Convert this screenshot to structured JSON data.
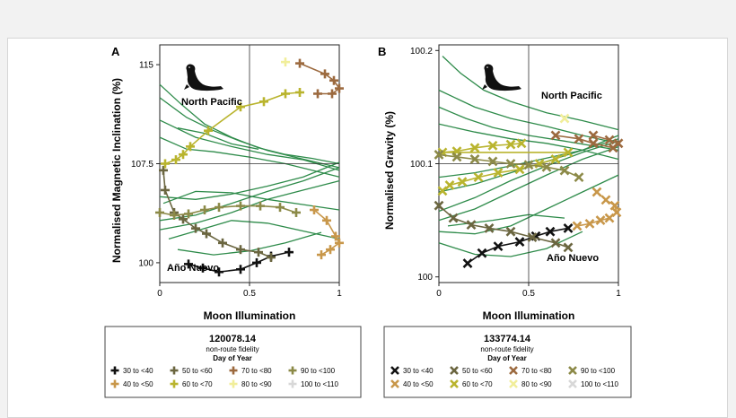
{
  "colors": {
    "track": "#2e8b4a",
    "bins": {
      "30 to <40": "#111111",
      "40 to <50": "#c8974a",
      "50 to <60": "#6b6640",
      "60 to <70": "#b9b42e",
      "70 to <80": "#9c6a3f",
      "80 to <90": "#f1ee9a",
      "90 to <100": "#8c8a48",
      "100 to <110": "#d8d8d8"
    }
  },
  "icons": {
    "seal": "seal-silhouette-icon"
  },
  "chart_data": [
    {
      "type": "scatter",
      "panel": "A",
      "xlabel": "Moon Illumination",
      "ylabel": "Normalised Magnetic Inclination (%)",
      "xlim": [
        0,
        1
      ],
      "ylim": [
        98.5,
        116.5
      ],
      "xticks": [
        0,
        0.5,
        1
      ],
      "xtick_labels": [
        "0",
        "0.5",
        "1"
      ],
      "yticks": [
        100,
        107.5,
        115
      ],
      "ytick_labels": [
        "100",
        "107.5",
        "115"
      ],
      "ref_lines": {
        "x": 0.5,
        "y": 107.5
      },
      "annotations": [
        "North Pacific",
        "Año Nuevo"
      ],
      "marker": "plus",
      "series": [
        {
          "bin": "30 to <40",
          "points": [
            [
              0.16,
              99.9
            ],
            [
              0.24,
              99.6
            ],
            [
              0.33,
              99.3
            ],
            [
              0.45,
              99.5
            ],
            [
              0.54,
              100.0
            ],
            [
              0.62,
              100.5
            ],
            [
              0.72,
              100.8
            ]
          ]
        },
        {
          "bin": "40 to <50",
          "points": [
            [
              0.86,
              104.0
            ],
            [
              0.93,
              103.2
            ],
            [
              0.98,
              102.0
            ],
            [
              1.0,
              101.5
            ],
            [
              0.95,
              101.0
            ],
            [
              0.9,
              100.6
            ]
          ]
        },
        {
          "bin": "50 to <60",
          "points": [
            [
              0.02,
              107.0
            ],
            [
              0.03,
              105.5
            ],
            [
              0.08,
              103.8
            ],
            [
              0.13,
              103.3
            ],
            [
              0.2,
              102.6
            ],
            [
              0.26,
              102.2
            ],
            [
              0.35,
              101.5
            ],
            [
              0.45,
              101.0
            ],
            [
              0.55,
              100.8
            ],
            [
              0.62,
              100.4
            ]
          ]
        },
        {
          "bin": "60 to <70",
          "points": [
            [
              0.03,
              107.5
            ],
            [
              0.09,
              107.8
            ],
            [
              0.13,
              108.2
            ],
            [
              0.17,
              108.8
            ],
            [
              0.27,
              110.0
            ],
            [
              0.45,
              111.8
            ],
            [
              0.58,
              112.2
            ],
            [
              0.7,
              112.8
            ],
            [
              0.78,
              112.9
            ]
          ]
        },
        {
          "bin": "70 to <80",
          "points": [
            [
              0.78,
              115.1
            ],
            [
              0.92,
              114.3
            ],
            [
              0.97,
              113.8
            ],
            [
              1.0,
              113.2
            ],
            [
              0.96,
              112.8
            ],
            [
              0.88,
              112.8
            ]
          ]
        },
        {
          "bin": "80 to <90",
          "points": [
            [
              0.7,
              115.2
            ]
          ]
        },
        {
          "bin": "90 to <100",
          "points": [
            [
              0.0,
              103.8
            ],
            [
              0.08,
              103.6
            ],
            [
              0.16,
              103.7
            ],
            [
              0.25,
              104.0
            ],
            [
              0.33,
              104.2
            ],
            [
              0.45,
              104.3
            ],
            [
              0.56,
              104.3
            ],
            [
              0.67,
              104.2
            ],
            [
              0.76,
              103.8
            ]
          ]
        },
        {
          "bin": "100 to <110",
          "points": []
        }
      ],
      "tracks": [
        [
          [
            0,
            113.5
          ],
          [
            0.12,
            112.0
          ],
          [
            0.25,
            110.5
          ],
          [
            0.4,
            109.5
          ],
          [
            0.55,
            108.7
          ],
          [
            0.7,
            108.2
          ],
          [
            0.85,
            107.9
          ],
          [
            1.0,
            107.5
          ]
        ],
        [
          [
            0,
            112.5
          ],
          [
            0.15,
            111.0
          ],
          [
            0.3,
            110.0
          ],
          [
            0.45,
            109.2
          ],
          [
            0.6,
            108.5
          ],
          [
            0.75,
            108.0
          ],
          [
            1.0,
            107.2
          ]
        ],
        [
          [
            0,
            110.8
          ],
          [
            0.2,
            109.5
          ],
          [
            0.4,
            108.8
          ],
          [
            0.6,
            108.2
          ],
          [
            0.8,
            107.8
          ],
          [
            1.0,
            107.0
          ]
        ],
        [
          [
            0,
            109.5
          ],
          [
            0.15,
            108.6
          ],
          [
            0.3,
            108.4
          ],
          [
            0.5,
            108.0
          ],
          [
            0.7,
            107.5
          ],
          [
            1.0,
            106.5
          ]
        ],
        [
          [
            0,
            105.0
          ],
          [
            0.2,
            104.8
          ],
          [
            0.4,
            105.2
          ],
          [
            0.6,
            105.8
          ],
          [
            0.8,
            106.5
          ],
          [
            1.0,
            107.6
          ]
        ],
        [
          [
            0,
            103.2
          ],
          [
            0.2,
            103.6
          ],
          [
            0.4,
            104.5
          ],
          [
            0.6,
            105.4
          ],
          [
            0.8,
            106.2
          ],
          [
            1.0,
            107.2
          ]
        ],
        [
          [
            0,
            102.5
          ],
          [
            0.2,
            103.0
          ],
          [
            0.4,
            103.8
          ],
          [
            0.6,
            104.8
          ],
          [
            0.8,
            105.5
          ],
          [
            1.0,
            106.2
          ]
        ],
        [
          [
            0.02,
            104.5
          ],
          [
            0.2,
            105.4
          ],
          [
            0.4,
            105.3
          ],
          [
            0.6,
            104.8
          ],
          [
            0.8,
            104.4
          ],
          [
            1.0,
            104.0
          ]
        ],
        [
          [
            0.05,
            101.8
          ],
          [
            0.2,
            102.4
          ],
          [
            0.4,
            103.2
          ],
          [
            0.6,
            103.0
          ],
          [
            0.8,
            102.4
          ],
          [
            1.0,
            101.8
          ]
        ],
        [
          [
            0.1,
            101.0
          ],
          [
            0.3,
            100.6
          ],
          [
            0.5,
            100.9
          ],
          [
            0.7,
            101.5
          ],
          [
            0.9,
            102.3
          ]
        ],
        [
          [
            0.1,
            110.2
          ],
          [
            0.25,
            109.8
          ],
          [
            0.4,
            109.0
          ],
          [
            0.55,
            108.6
          ]
        ]
      ]
    },
    {
      "type": "scatter",
      "panel": "B",
      "xlabel": "Moon Illumination",
      "ylabel": "Normalised Gravity (%)",
      "xlim": [
        0,
        1
      ],
      "ylim": [
        99.995,
        100.205
      ],
      "xticks": [
        0,
        0.5,
        1
      ],
      "xtick_labels": [
        "0",
        "0.5",
        "1"
      ],
      "yticks": [
        100,
        100.1,
        100.2
      ],
      "ytick_labels": [
        "100",
        "100.1",
        "100.2"
      ],
      "ref_lines": {
        "x": 0.5,
        "y": 100.1
      },
      "annotations": [
        "North Pacific",
        "Año Nuevo"
      ],
      "marker": "cross",
      "series": [
        {
          "bin": "30 to <40",
          "points": [
            [
              0.16,
              100.012
            ],
            [
              0.24,
              100.021
            ],
            [
              0.33,
              100.027
            ],
            [
              0.45,
              100.031
            ],
            [
              0.54,
              100.036
            ],
            [
              0.62,
              100.04
            ],
            [
              0.72,
              100.043
            ]
          ]
        },
        {
          "bin": "40 to <50",
          "points": [
            [
              0.77,
              100.045
            ],
            [
              0.84,
              100.047
            ],
            [
              0.9,
              100.05
            ],
            [
              0.95,
              100.052
            ],
            [
              0.99,
              100.057
            ],
            [
              0.98,
              100.063
            ],
            [
              0.93,
              100.068
            ],
            [
              0.88,
              100.075
            ]
          ]
        },
        {
          "bin": "50 to <60",
          "points": [
            [
              0.0,
              100.063
            ],
            [
              0.08,
              100.052
            ],
            [
              0.18,
              100.046
            ],
            [
              0.28,
              100.043
            ],
            [
              0.4,
              100.04
            ],
            [
              0.52,
              100.035
            ],
            [
              0.65,
              100.03
            ],
            [
              0.72,
              100.026
            ]
          ]
        },
        {
          "bin": "60 to <70",
          "points": [
            [
              0.02,
              100.076
            ],
            [
              0.06,
              100.081
            ],
            [
              0.13,
              100.084
            ],
            [
              0.22,
              100.088
            ],
            [
              0.33,
              100.092
            ],
            [
              0.45,
              100.095
            ],
            [
              0.56,
              100.1
            ],
            [
              0.65,
              100.104
            ],
            [
              0.72,
              100.11
            ],
            [
              0.02,
              100.11
            ],
            [
              0.1,
              100.111
            ],
            [
              0.2,
              100.114
            ],
            [
              0.3,
              100.116
            ],
            [
              0.4,
              100.117
            ],
            [
              0.46,
              100.118
            ]
          ]
        },
        {
          "bin": "70 to <80",
          "points": [
            [
              0.65,
              100.125
            ],
            [
              0.78,
              100.122
            ],
            [
              0.86,
              100.118
            ],
            [
              0.97,
              100.114
            ],
            [
              1.0,
              100.118
            ],
            [
              0.95,
              100.121
            ],
            [
              0.86,
              100.125
            ]
          ]
        },
        {
          "bin": "80 to <90",
          "points": [
            [
              0.7,
              100.14
            ]
          ]
        },
        {
          "bin": "90 to <100",
          "points": [
            [
              0.0,
              100.108
            ],
            [
              0.1,
              100.106
            ],
            [
              0.2,
              100.104
            ],
            [
              0.3,
              100.102
            ],
            [
              0.4,
              100.1
            ],
            [
              0.5,
              100.099
            ],
            [
              0.6,
              100.097
            ],
            [
              0.7,
              100.094
            ],
            [
              0.78,
              100.088
            ]
          ]
        },
        {
          "bin": "100 to <110",
          "points": []
        }
      ],
      "tracks": [
        [
          [
            0.02,
            100.195
          ],
          [
            0.12,
            100.18
          ],
          [
            0.25,
            100.165
          ],
          [
            0.4,
            100.155
          ],
          [
            0.6,
            100.145
          ],
          [
            0.8,
            100.138
          ],
          [
            1.0,
            100.13
          ]
        ],
        [
          [
            0.0,
            100.165
          ],
          [
            0.2,
            100.15
          ],
          [
            0.4,
            100.14
          ],
          [
            0.6,
            100.133
          ],
          [
            0.8,
            100.125
          ],
          [
            1.0,
            100.118
          ]
        ],
        [
          [
            0.0,
            100.15
          ],
          [
            0.15,
            100.14
          ],
          [
            0.3,
            100.132
          ],
          [
            0.5,
            100.125
          ],
          [
            0.7,
            100.12
          ],
          [
            1.0,
            100.112
          ]
        ],
        [
          [
            0.0,
            100.135
          ],
          [
            0.2,
            100.128
          ],
          [
            0.4,
            100.122
          ],
          [
            0.6,
            100.118
          ],
          [
            0.8,
            100.112
          ],
          [
            1.0,
            100.104
          ]
        ],
        [
          [
            0.0,
            100.088
          ],
          [
            0.2,
            100.092
          ],
          [
            0.4,
            100.098
          ],
          [
            0.6,
            100.105
          ],
          [
            0.8,
            100.112
          ],
          [
            1.0,
            100.122
          ]
        ],
        [
          [
            0.0,
            100.075
          ],
          [
            0.2,
            100.082
          ],
          [
            0.4,
            100.092
          ],
          [
            0.6,
            100.102
          ],
          [
            0.8,
            100.112
          ],
          [
            1.0,
            100.125
          ]
        ],
        [
          [
            0.0,
            100.058
          ],
          [
            0.2,
            100.07
          ],
          [
            0.4,
            100.085
          ],
          [
            0.6,
            100.098
          ],
          [
            0.8,
            100.11
          ],
          [
            1.0,
            100.12
          ]
        ],
        [
          [
            0.0,
            100.05
          ],
          [
            0.2,
            100.06
          ],
          [
            0.4,
            100.075
          ],
          [
            0.6,
            100.09
          ],
          [
            0.8,
            100.104
          ],
          [
            1.0,
            100.115
          ]
        ],
        [
          [
            0.0,
            100.04
          ],
          [
            0.2,
            100.038
          ],
          [
            0.4,
            100.045
          ],
          [
            0.6,
            100.06
          ],
          [
            0.8,
            100.075
          ],
          [
            1.0,
            100.09
          ]
        ],
        [
          [
            0.0,
            100.03
          ],
          [
            0.2,
            100.02
          ],
          [
            0.4,
            100.018
          ],
          [
            0.6,
            100.025
          ],
          [
            0.8,
            100.04
          ]
        ],
        [
          [
            0.05,
            100.045
          ],
          [
            0.3,
            100.05
          ],
          [
            0.5,
            100.055
          ],
          [
            0.7,
            100.052
          ]
        ]
      ]
    }
  ],
  "legends": [
    {
      "title": "120078.14",
      "subtitle1": "non-route fidelity",
      "subtitle2": "Day of Year",
      "items": [
        "30 to <40",
        "50 to <60",
        "70 to <80",
        "90 to <100",
        "40 to <50",
        "60 to <70",
        "80 to <90",
        "100 to <110"
      ]
    },
    {
      "title": "133774.14",
      "subtitle1": "non-route fidelity",
      "subtitle2": "Day of Year",
      "items": [
        "30 to <40",
        "50 to <60",
        "70 to <80",
        "90 to <100",
        "40 to <50",
        "60 to <70",
        "80 to <90",
        "100 to <110"
      ]
    }
  ]
}
